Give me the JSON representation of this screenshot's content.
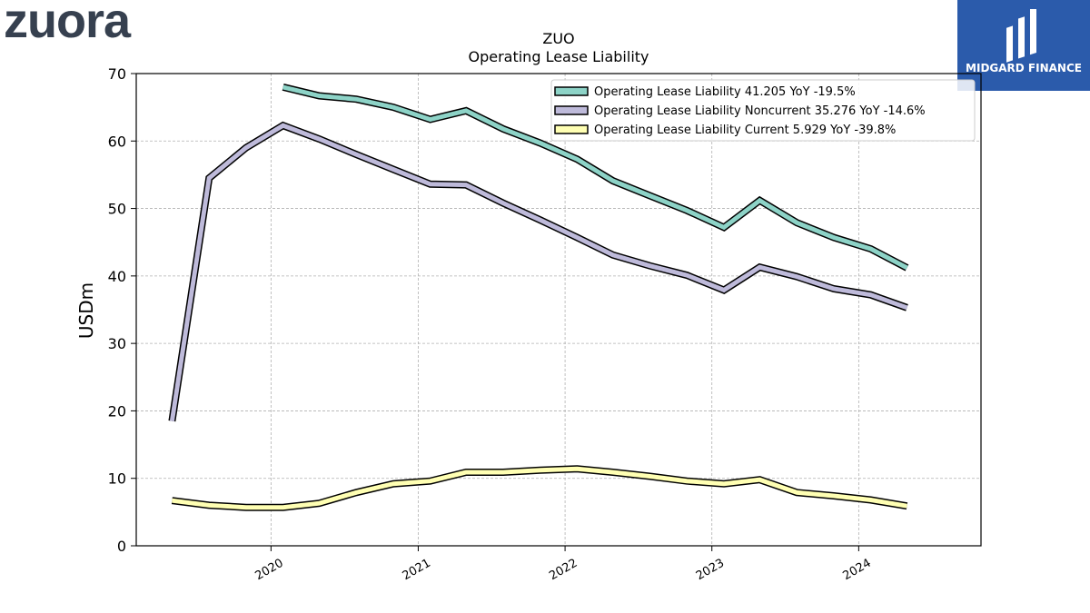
{
  "header": {
    "company_logo": "zuora",
    "brand_logo": "MIDGARD FINANCE"
  },
  "colors": {
    "logo_text": "#36404f",
    "brand_bg": "#2b5bab",
    "series": [
      "#8dd3c7",
      "#bebada",
      "#ffffb3"
    ]
  },
  "chart_data": {
    "type": "line",
    "title": "ZUO",
    "subtitle": "Operating Lease Liability",
    "xlabel": "",
    "ylabel": "USDm",
    "ylim": [
      0,
      70
    ],
    "yticks": [
      0,
      10,
      20,
      30,
      40,
      50,
      60,
      70
    ],
    "xlim": [
      "2019-01-31",
      "2024-10-31"
    ],
    "xticks": [
      "2020",
      "2021",
      "2022",
      "2023",
      "2024"
    ],
    "grid": true,
    "legend": "top-right",
    "series": [
      {
        "name": "Operating Lease Liability  41.205 YoY -19.5%",
        "color": "#8dd3c7",
        "points": [
          [
            "2020-01-31",
            68.0
          ],
          [
            "2020-04-30",
            66.7
          ],
          [
            "2020-07-31",
            66.2
          ],
          [
            "2020-10-31",
            65.0
          ],
          [
            "2021-01-31",
            63.2
          ],
          [
            "2021-04-30",
            64.5
          ],
          [
            "2021-07-31",
            61.8
          ],
          [
            "2021-10-31",
            59.7
          ],
          [
            "2022-01-31",
            57.3
          ],
          [
            "2022-04-30",
            54.1
          ],
          [
            "2022-07-31",
            51.9
          ],
          [
            "2022-10-31",
            49.7
          ],
          [
            "2023-01-31",
            47.2
          ],
          [
            "2023-04-30",
            51.2
          ],
          [
            "2023-07-31",
            47.9
          ],
          [
            "2023-10-31",
            45.7
          ],
          [
            "2024-01-31",
            44.0
          ],
          [
            "2024-04-30",
            41.2
          ]
        ]
      },
      {
        "name": "Operating Lease Liability Noncurrent  35.276 YoY -14.6%",
        "color": "#bebada",
        "points": [
          [
            "2019-04-30",
            18.5
          ],
          [
            "2019-07-31",
            54.5
          ],
          [
            "2019-10-31",
            59.0
          ],
          [
            "2020-01-31",
            62.3
          ],
          [
            "2020-04-30",
            60.3
          ],
          [
            "2020-07-31",
            58.0
          ],
          [
            "2020-10-31",
            55.8
          ],
          [
            "2021-01-31",
            53.6
          ],
          [
            "2021-04-30",
            53.5
          ],
          [
            "2021-07-31",
            50.8
          ],
          [
            "2021-10-31",
            48.3
          ],
          [
            "2022-01-31",
            45.7
          ],
          [
            "2022-04-30",
            43.1
          ],
          [
            "2022-07-31",
            41.5
          ],
          [
            "2022-10-31",
            40.1
          ],
          [
            "2023-01-31",
            37.9
          ],
          [
            "2023-04-30",
            41.3
          ],
          [
            "2023-07-31",
            39.9
          ],
          [
            "2023-10-31",
            38.1
          ],
          [
            "2024-01-31",
            37.2
          ],
          [
            "2024-04-30",
            35.3
          ]
        ]
      },
      {
        "name": "Operating Lease Liability Current  5.929 YoY -39.8%",
        "color": "#ffffb3",
        "points": [
          [
            "2019-04-30",
            6.7
          ],
          [
            "2019-07-31",
            6.0
          ],
          [
            "2019-10-31",
            5.7
          ],
          [
            "2020-01-31",
            5.7
          ],
          [
            "2020-04-30",
            6.3
          ],
          [
            "2020-07-31",
            7.9
          ],
          [
            "2020-10-31",
            9.2
          ],
          [
            "2021-01-31",
            9.6
          ],
          [
            "2021-04-30",
            10.9
          ],
          [
            "2021-07-31",
            10.9
          ],
          [
            "2021-10-31",
            11.2
          ],
          [
            "2022-01-31",
            11.4
          ],
          [
            "2022-04-30",
            10.9
          ],
          [
            "2022-07-31",
            10.3
          ],
          [
            "2022-10-31",
            9.6
          ],
          [
            "2023-01-31",
            9.2
          ],
          [
            "2023-04-30",
            9.8
          ],
          [
            "2023-07-31",
            7.9
          ],
          [
            "2023-10-31",
            7.4
          ],
          [
            "2024-01-31",
            6.8
          ],
          [
            "2024-04-30",
            5.9
          ]
        ]
      }
    ]
  }
}
